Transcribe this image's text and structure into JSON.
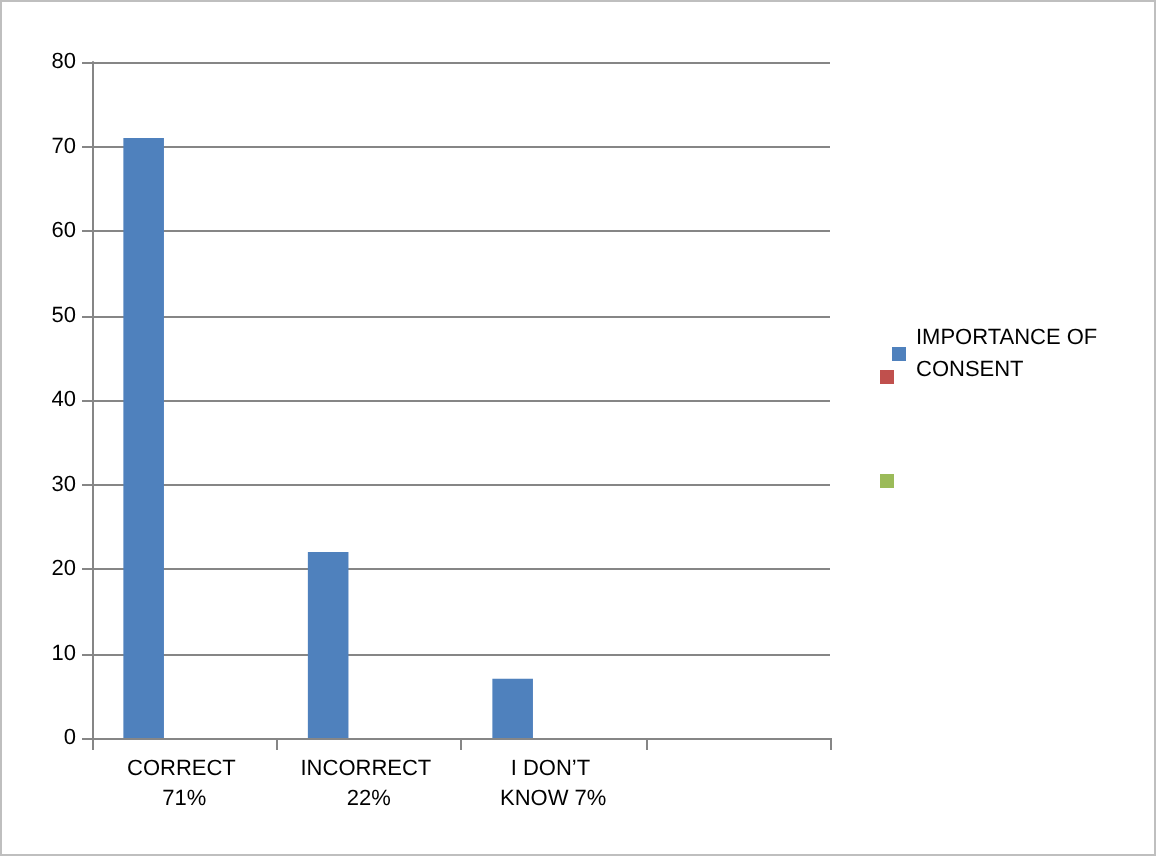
{
  "chart_data": {
    "type": "bar",
    "categories": [
      "CORRECT 71%",
      "INCORRECT 22%",
      "I DON’T KNOW 7%",
      null
    ],
    "series": [
      {
        "name": "IMPORTANCE OF CONSENT",
        "color": "#4f81bd",
        "values": [
          71,
          22,
          7,
          null
        ]
      },
      {
        "color": "#c0504d",
        "values": [
          null,
          null,
          null,
          null
        ]
      },
      {
        "color": "#9bbb59",
        "values": [
          null,
          null,
          null,
          null
        ]
      }
    ],
    "ylim": [
      0,
      80
    ],
    "yticks": [
      0,
      10,
      20,
      30,
      40,
      50,
      60,
      70,
      80
    ],
    "grid": "y",
    "legend": "right"
  }
}
